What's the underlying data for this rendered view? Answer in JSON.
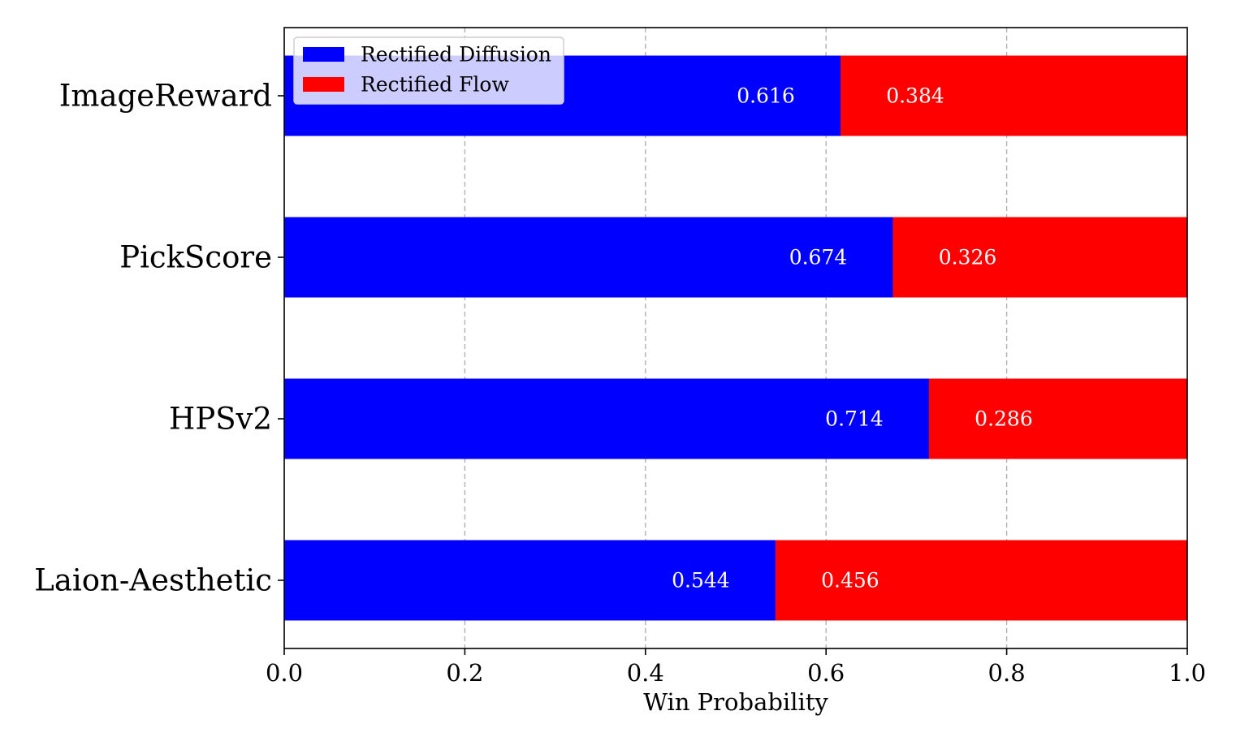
{
  "chart_data": {
    "type": "bar",
    "orientation": "horizontal",
    "stacked": true,
    "title": "",
    "xlabel": "Win Probability",
    "ylabel": "",
    "xlim": [
      0,
      1
    ],
    "xticks": [
      0.0,
      0.2,
      0.4,
      0.6,
      0.8,
      1.0
    ],
    "xtick_labels": [
      "0.0",
      "0.2",
      "0.4",
      "0.6",
      "0.8",
      "1.0"
    ],
    "grid": "x-dashed",
    "legend_placement": "top-left",
    "categories": [
      "ImageReward",
      "PickScore",
      "HPSv2",
      "Laion-Aesthetic"
    ],
    "series": [
      {
        "name": "Rectified Diffusion",
        "color": "#0000ff",
        "values": [
          0.616,
          0.674,
          0.714,
          0.544
        ],
        "labels": [
          "0.616",
          "0.674",
          "0.714",
          "0.544"
        ]
      },
      {
        "name": "Rectified Flow",
        "color": "#ff0000",
        "values": [
          0.384,
          0.326,
          0.286,
          0.456
        ],
        "labels": [
          "0.384",
          "0.326",
          "0.286",
          "0.456"
        ]
      }
    ]
  }
}
